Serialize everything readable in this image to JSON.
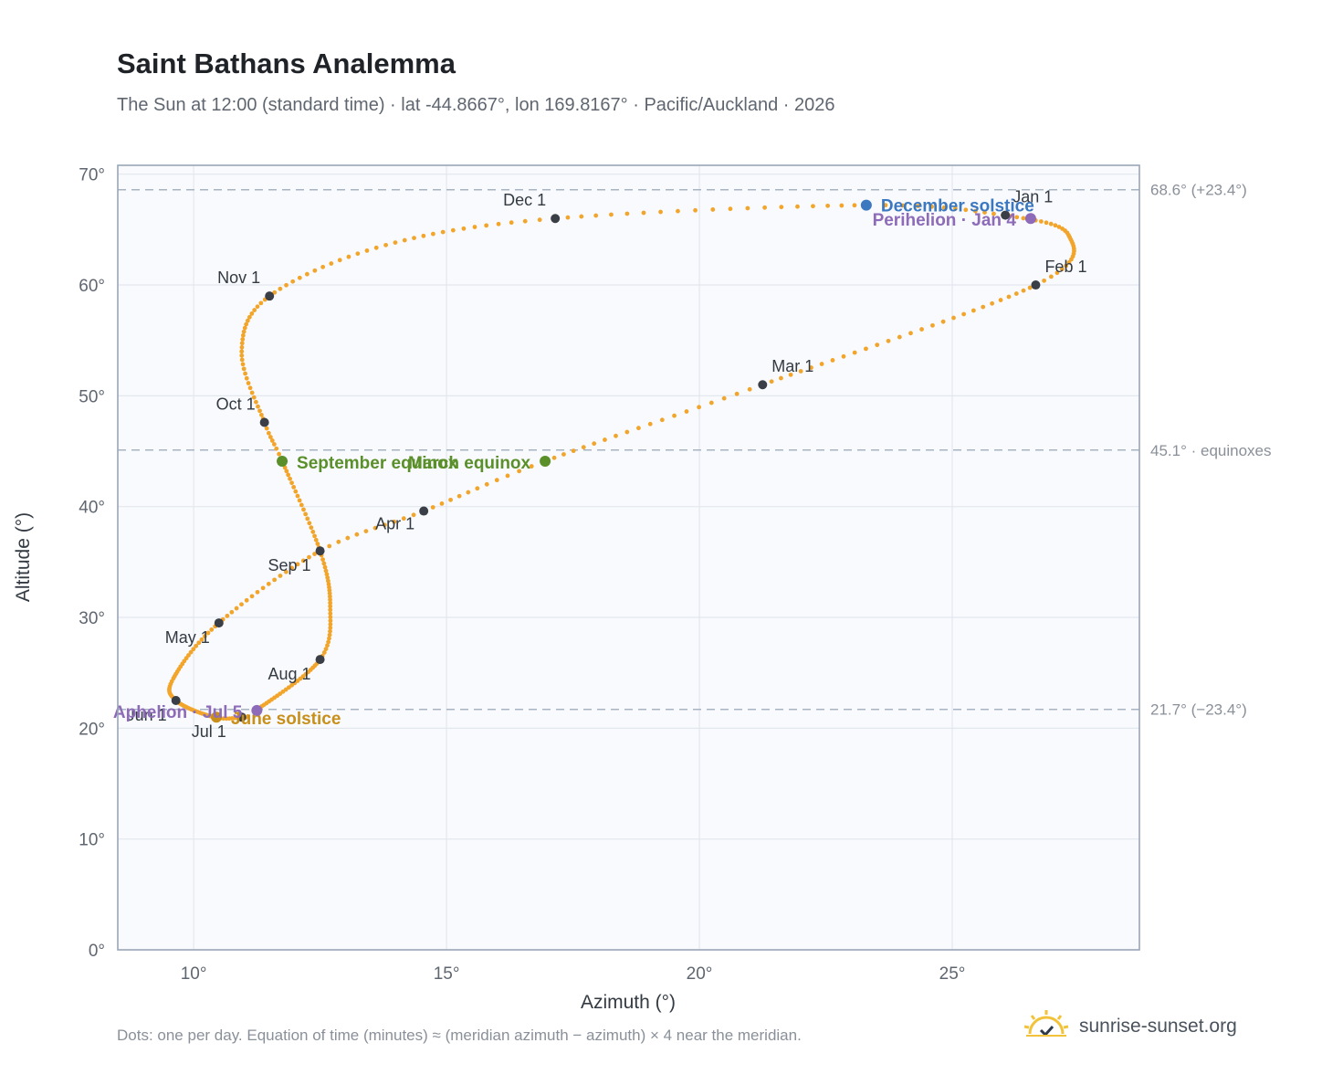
{
  "header": {
    "title": "Saint Bathans Analemma",
    "subtitle": "The Sun at 12:00 (standard time) · lat -44.8667°, lon 169.8167° · Pacific/Auckland · 2026"
  },
  "footer": {
    "note": "Dots: one per day. Equation of time (minutes) ≈ (meridian azimuth − azimuth) × 4 near the meridian.",
    "brand": "sunrise-sunset.org"
  },
  "colors": {
    "curve": "#f2a52b",
    "marker": "#3a3f47",
    "solstice_december": "#3b78c0",
    "solstice_june": "#c8901a",
    "equinox": "#5a8f2a",
    "apsis": "#8d6bb8",
    "plot_bg": "#f8fafd",
    "grid": "#e3e8ee",
    "reference_line": "#a9b4c2"
  },
  "chart_data": {
    "type": "scatter",
    "xlabel": "Azimuth (°)",
    "ylabel": "Altitude (°)",
    "xlim": [
      8.5,
      28.7
    ],
    "ylim": [
      0,
      70.8
    ],
    "x_ticks": [
      10,
      15,
      20,
      25
    ],
    "x_tick_labels": [
      "10°",
      "15°",
      "20°",
      "25°"
    ],
    "y_ticks": [
      0,
      10,
      20,
      30,
      40,
      50,
      60,
      70
    ],
    "y_tick_labels": [
      "0°",
      "10°",
      "20°",
      "30°",
      "40°",
      "50°",
      "60°",
      "70°"
    ],
    "grid": true,
    "reference_lines": [
      {
        "y": 68.6,
        "label": "68.6° (+23.4°)"
      },
      {
        "y": 45.1,
        "label": "45.1° · equinoxes"
      },
      {
        "y": 21.7,
        "label": "21.7° (−23.4°)"
      }
    ],
    "curve_control_points": [
      {
        "doy": 1,
        "az": 26.0,
        "alt": 66.3
      },
      {
        "doy": 15,
        "az": 27.3,
        "alt": 64.5
      },
      {
        "doy": 32,
        "az": 26.65,
        "alt": 60.0
      },
      {
        "doy": 60,
        "az": 21.25,
        "alt": 51.0
      },
      {
        "doy": 79,
        "az": 16.95,
        "alt": 44.1
      },
      {
        "doy": 91,
        "az": 14.55,
        "alt": 39.6
      },
      {
        "doy": 102,
        "az": 12.5,
        "alt": 36.0
      },
      {
        "doy": 121,
        "az": 10.5,
        "alt": 29.5
      },
      {
        "doy": 140,
        "az": 9.6,
        "alt": 24.5
      },
      {
        "doy": 152,
        "az": 9.65,
        "alt": 22.5
      },
      {
        "doy": 172,
        "az": 10.4,
        "alt": 21.0
      },
      {
        "doy": 182,
        "az": 10.95,
        "alt": 21.0
      },
      {
        "doy": 186,
        "az": 11.2,
        "alt": 21.5
      },
      {
        "doy": 213,
        "az": 12.5,
        "alt": 26.2
      },
      {
        "doy": 228,
        "az": 12.7,
        "alt": 31.0
      },
      {
        "doy": 244,
        "az": 12.5,
        "alt": 36.0
      },
      {
        "doy": 266,
        "az": 11.75,
        "alt": 44.1
      },
      {
        "doy": 274,
        "az": 11.4,
        "alt": 47.6
      },
      {
        "doy": 290,
        "az": 10.95,
        "alt": 54.0
      },
      {
        "doy": 305,
        "az": 11.5,
        "alt": 59.0
      },
      {
        "doy": 320,
        "az": 13.8,
        "alt": 63.6
      },
      {
        "doy": 335,
        "az": 17.15,
        "alt": 66.0
      },
      {
        "doy": 355,
        "az": 23.3,
        "alt": 67.2
      },
      {
        "doy": 366,
        "az": 26.0,
        "alt": 66.3
      }
    ],
    "month_markers": [
      {
        "label": "Jan 1",
        "az": 26.05,
        "alt": 66.3,
        "anchor": "start",
        "dx": 8,
        "dy": -14
      },
      {
        "label": "Feb 1",
        "az": 26.65,
        "alt": 60.0,
        "anchor": "start",
        "dx": 10,
        "dy": -14
      },
      {
        "label": "Mar 1",
        "az": 21.25,
        "alt": 51.0,
        "anchor": "start",
        "dx": 10,
        "dy": -14
      },
      {
        "label": "Apr 1",
        "az": 14.55,
        "alt": 39.6,
        "anchor": "end",
        "dx": -10,
        "dy": 20
      },
      {
        "label": "May 1",
        "az": 10.5,
        "alt": 29.5,
        "anchor": "end",
        "dx": -10,
        "dy": 22
      },
      {
        "label": "Jun 1",
        "az": 9.65,
        "alt": 22.5,
        "anchor": "end",
        "dx": -10,
        "dy": 22
      },
      {
        "label": "Jul 1",
        "az": 10.95,
        "alt": 21.0,
        "anchor": "middle",
        "dx": -36,
        "dy": 22
      },
      {
        "label": "Aug 1",
        "az": 12.5,
        "alt": 26.2,
        "anchor": "end",
        "dx": -10,
        "dy": 22
      },
      {
        "label": "Sep 1",
        "az": 12.5,
        "alt": 36.0,
        "anchor": "end",
        "dx": -10,
        "dy": 22
      },
      {
        "label": "Oct 1",
        "az": 11.4,
        "alt": 47.6,
        "anchor": "end",
        "dx": -10,
        "dy": -14
      },
      {
        "label": "Nov 1",
        "az": 11.5,
        "alt": 59.0,
        "anchor": "end",
        "dx": -10,
        "dy": -14
      },
      {
        "label": "Dec 1",
        "az": 17.15,
        "alt": 66.0,
        "anchor": "end",
        "dx": -10,
        "dy": -14
      }
    ],
    "events": [
      {
        "label": "December solstice",
        "az": 23.3,
        "alt": 67.2,
        "color": "#3b78c0",
        "anchor": "start",
        "dx": 16,
        "dy": 7
      },
      {
        "label": "Perihelion · Jan 4",
        "az": 26.55,
        "alt": 66.0,
        "color": "#8d6bb8",
        "anchor": "end",
        "dx": -16,
        "dy": 8
      },
      {
        "label": "March equinox",
        "az": 16.95,
        "alt": 44.1,
        "color": "#5a8f2a",
        "anchor": "end",
        "dx": -16,
        "dy": 8
      },
      {
        "label": "September equinox",
        "az": 11.75,
        "alt": 44.1,
        "color": "#5a8f2a",
        "anchor": "start",
        "dx": 16,
        "dy": 8
      },
      {
        "label": "June solstice",
        "az": 10.45,
        "alt": 21.0,
        "color": "#c8901a",
        "anchor": "start",
        "dx": 16,
        "dy": 8
      },
      {
        "label": "Aphelion · Jul 5",
        "az": 11.25,
        "alt": 21.6,
        "color": "#8d6bb8",
        "anchor": "end",
        "dx": -16,
        "dy": 8
      }
    ]
  }
}
